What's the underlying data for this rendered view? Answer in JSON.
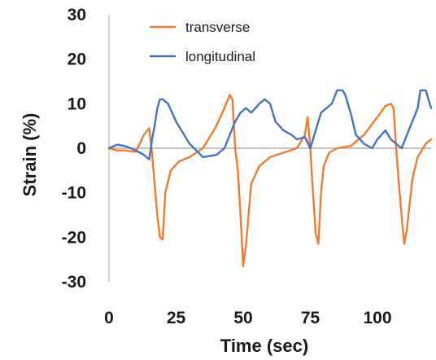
{
  "chart_data": {
    "type": "line",
    "xlabel": "Time (sec)",
    "ylabel": "Strain (%)",
    "xlim": [
      0,
      120
    ],
    "ylim": [
      -30,
      30
    ],
    "xticks": [
      0,
      25,
      50,
      75,
      100
    ],
    "yticks": [
      30,
      20,
      10,
      0,
      -10,
      -20,
      -30
    ],
    "grid": false,
    "legend": "top-center",
    "colors": {
      "transverse": "#ED7D31",
      "longitudinal": "#4472C4",
      "zero_line": "#b0b0b0",
      "axis": "#c8c8c8"
    },
    "series": [
      {
        "name": "transverse",
        "x": [
          0,
          3,
          6,
          10,
          13,
          15,
          16,
          17,
          18,
          19,
          20,
          21,
          23,
          26,
          30,
          35,
          40,
          43,
          45,
          46,
          47,
          48,
          49,
          50,
          51,
          53,
          56,
          60,
          65,
          70,
          73,
          74,
          75,
          76,
          77,
          78,
          79,
          80,
          82,
          85,
          90,
          95,
          100,
          103,
          105,
          106,
          107,
          108,
          109,
          110,
          111,
          113,
          115,
          118,
          120
        ],
        "y": [
          0,
          -0.5,
          -0.5,
          -0.8,
          3,
          4.5,
          -1,
          -8,
          -15,
          -20,
          -20.5,
          -10,
          -5,
          -3,
          -2,
          0,
          5,
          9,
          12,
          11,
          0,
          -5,
          -15,
          -26.5,
          -22,
          -8,
          -4,
          -2,
          -1,
          0,
          3,
          7,
          0,
          -10,
          -19,
          -21.5,
          -10,
          -4,
          -1,
          0,
          0.5,
          3,
          7,
          9.5,
          10,
          9,
          0,
          -8,
          -15,
          -21.5,
          -18,
          -7,
          -2,
          1,
          2
        ]
      },
      {
        "name": "longitudinal",
        "x": [
          0,
          3,
          6,
          10,
          13,
          15,
          16,
          17,
          18,
          19,
          20,
          22,
          25,
          30,
          35,
          40,
          43,
          45,
          47,
          49,
          51,
          53,
          56,
          58,
          60,
          62,
          65,
          68,
          70,
          73,
          75,
          77,
          79,
          81,
          83,
          85,
          87,
          88,
          90,
          92,
          95,
          98,
          100,
          103,
          105,
          107,
          109,
          111,
          113,
          115,
          116,
          118,
          120
        ],
        "y": [
          0,
          0.8,
          0.5,
          -0.5,
          -1.5,
          -2.5,
          2,
          5,
          9,
          11,
          11,
          10,
          6,
          1,
          -2,
          -1.5,
          0,
          3,
          6,
          8,
          9,
          8,
          10,
          11,
          10,
          6,
          4,
          3,
          2,
          2.5,
          0,
          4,
          8,
          9,
          10,
          13,
          13,
          12,
          8,
          3,
          1,
          0,
          2,
          4,
          2,
          1,
          0,
          3,
          6,
          9,
          13,
          13,
          9
        ]
      }
    ]
  }
}
